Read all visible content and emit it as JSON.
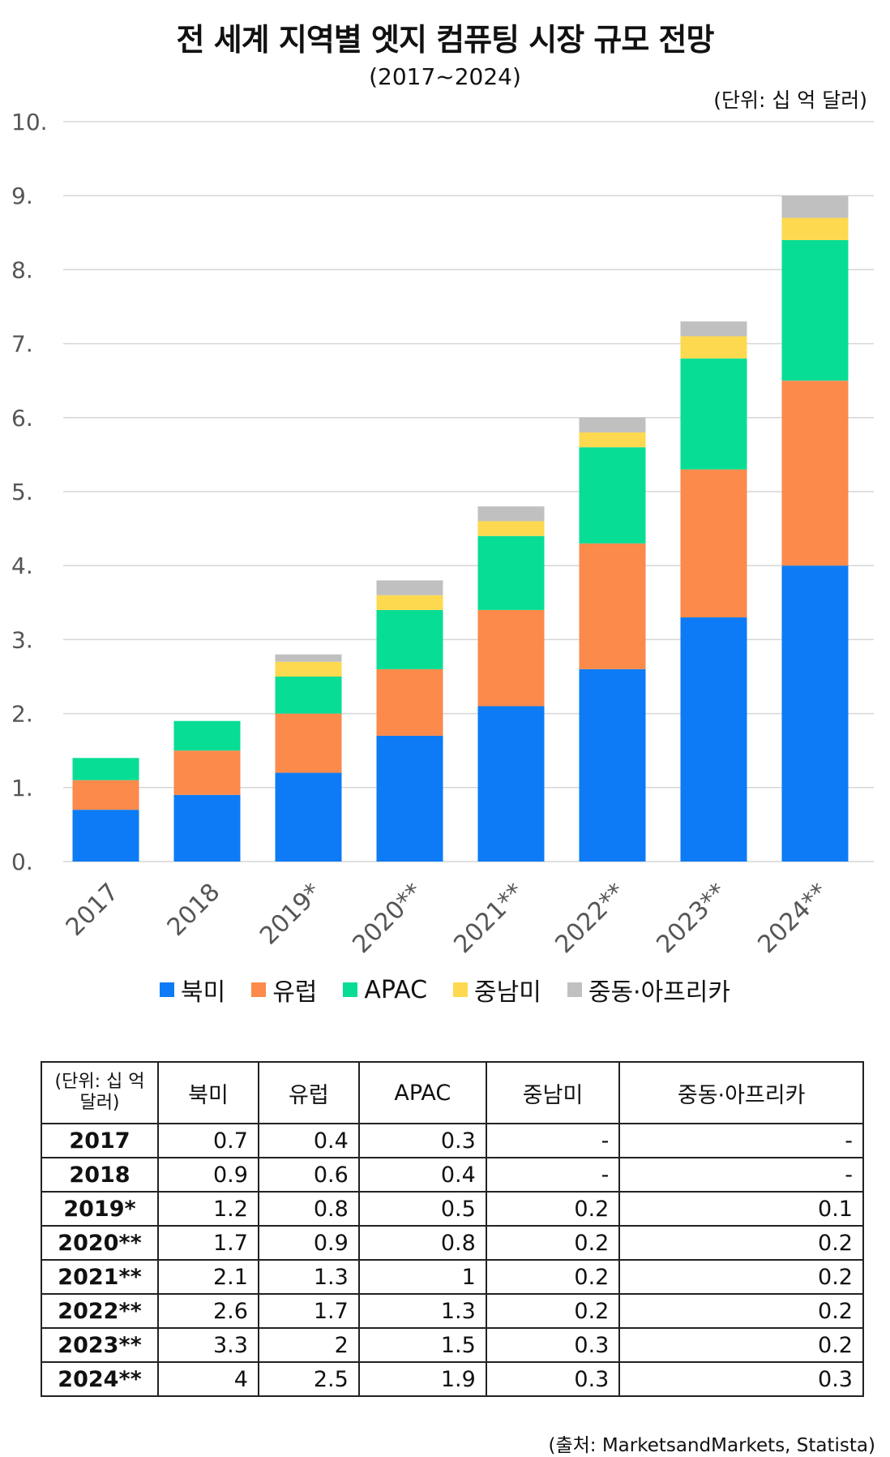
{
  "title": "전 세계 지역별 엣지 컴퓨팅 시장 규모 전망",
  "subtitle": "(2017~2024)",
  "unit_label": "(단위: 십 억 달러)",
  "colors": {
    "north_america": "#0d7bf5",
    "europe": "#fb8a4b",
    "apac": "#08dd95",
    "latin_america": "#fdd94f",
    "mea": "#c0c0c0"
  },
  "chart_data": {
    "type": "bar",
    "stacked": true,
    "title": "전 세계 지역별 엣지 컴퓨팅 시장 규모 전망",
    "subtitle": "(2017~2024)",
    "ylabel": "(단위: 십 억 달러)",
    "ylim": [
      0,
      10
    ],
    "yticks": [
      "0.",
      "1.",
      "2.",
      "3.",
      "4.",
      "5.",
      "6.",
      "7.",
      "8.",
      "9.",
      "10."
    ],
    "grid": true,
    "legend_position": "bottom",
    "categories": [
      "2017",
      "2018",
      "2019*",
      "2020**",
      "2021**",
      "2022**",
      "2023**",
      "2024**"
    ],
    "series": [
      {
        "name": "북미",
        "color": "#0d7bf5",
        "values": [
          0.7,
          0.9,
          1.2,
          1.7,
          2.1,
          2.6,
          3.3,
          4
        ]
      },
      {
        "name": "유럽",
        "color": "#fb8a4b",
        "values": [
          0.4,
          0.6,
          0.8,
          0.9,
          1.3,
          1.7,
          2,
          2.5
        ]
      },
      {
        "name": "APAC",
        "color": "#08dd95",
        "values": [
          0.3,
          0.4,
          0.5,
          0.8,
          1,
          1.3,
          1.5,
          1.9
        ]
      },
      {
        "name": "중남미",
        "color": "#fdd94f",
        "values": [
          0,
          0,
          0.2,
          0.2,
          0.2,
          0.2,
          0.3,
          0.3
        ]
      },
      {
        "name": "중동·아프리카",
        "color": "#c0c0c0",
        "values": [
          0,
          0,
          0.1,
          0.2,
          0.2,
          0.2,
          0.2,
          0.3
        ]
      }
    ]
  },
  "table": {
    "unit_header_line1": "(단위: 십 억",
    "unit_header_line2": "달러)",
    "headers": [
      "북미",
      "유럽",
      "APAC",
      "중남미",
      "중동·아프리카"
    ],
    "rows": [
      {
        "year": "2017",
        "cells": [
          "0.7",
          "0.4",
          "0.3",
          "-",
          "-"
        ]
      },
      {
        "year": "2018",
        "cells": [
          "0.9",
          "0.6",
          "0.4",
          "-",
          "-"
        ]
      },
      {
        "year": "2019*",
        "cells": [
          "1.2",
          "0.8",
          "0.5",
          "0.2",
          "0.1"
        ]
      },
      {
        "year": "2020**",
        "cells": [
          "1.7",
          "0.9",
          "0.8",
          "0.2",
          "0.2"
        ]
      },
      {
        "year": "2021**",
        "cells": [
          "2.1",
          "1.3",
          "1",
          "0.2",
          "0.2"
        ]
      },
      {
        "year": "2022**",
        "cells": [
          "2.6",
          "1.7",
          "1.3",
          "0.2",
          "0.2"
        ]
      },
      {
        "year": "2023**",
        "cells": [
          "3.3",
          "2",
          "1.5",
          "0.3",
          "0.2"
        ]
      },
      {
        "year": "2024**",
        "cells": [
          "4",
          "2.5",
          "1.9",
          "0.3",
          "0.3"
        ]
      }
    ]
  },
  "source": "(출처: MarketsandMarkets, Statista)"
}
